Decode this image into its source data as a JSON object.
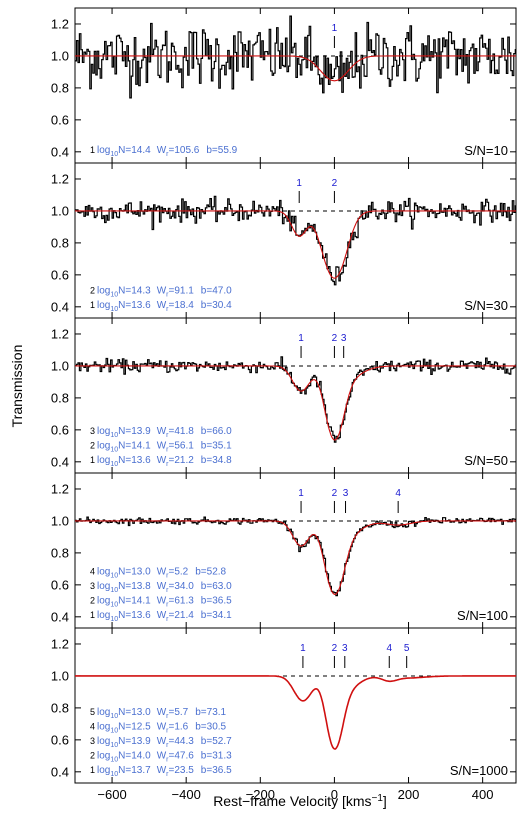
{
  "chart_data": {
    "type": "line",
    "xlabel": "Rest−frame Velocity [kms",
    "xlabel_sup": "−1",
    "xlabel_close": "]",
    "ylabel": "Transmission",
    "xlim": [
      -700,
      490
    ],
    "ylim": [
      0.33,
      1.3
    ],
    "x_ticks": [
      -600,
      -400,
      -200,
      0,
      200,
      400
    ],
    "x_tick_labels": [
      "−600",
      "−400",
      "−200",
      "0",
      "200",
      "400"
    ],
    "y_ticks": [
      0.4,
      0.6,
      0.8,
      1.0,
      1.2
    ],
    "y_tick_labels": [
      "0.4",
      "0.6",
      "0.8",
      "1.0",
      "1.2"
    ],
    "continuum_level": 1.0,
    "colors": {
      "data": "#000000",
      "model": "#d01010",
      "annotation": "#4a6fd0",
      "component_marker": "#1a1ad0"
    },
    "panels": [
      {
        "snr_label": "S/N=10",
        "snr": 10,
        "components": [
          {
            "id": "1",
            "v": 0,
            "log_prefix": "log",
            "log_sub": "10",
            "log_rest": "N=14.4",
            "w_prefix": "W",
            "w_sub": "r",
            "w_rest": "=105.6",
            "b_text": "b=55.9"
          }
        ]
      },
      {
        "snr_label": "S/N=30",
        "snr": 30,
        "components": [
          {
            "id": "2",
            "v": 0,
            "log_prefix": "log",
            "log_sub": "10",
            "log_rest": "N=14.3",
            "w_prefix": "W",
            "w_sub": "r",
            "w_rest": "=91.1",
            "b_text": "b=47.0"
          },
          {
            "id": "1",
            "v": -95,
            "log_prefix": "log",
            "log_sub": "10",
            "log_rest": "N=13.6",
            "w_prefix": "W",
            "w_sub": "r",
            "w_rest": "=18.4",
            "b_text": "b=30.4"
          }
        ]
      },
      {
        "snr_label": "S/N=50",
        "snr": 50,
        "components": [
          {
            "id": "3",
            "v": 25,
            "log_prefix": "log",
            "log_sub": "10",
            "log_rest": "N=13.9",
            "w_prefix": "W",
            "w_sub": "r",
            "w_rest": "=41.8",
            "b_text": "b=66.0"
          },
          {
            "id": "2",
            "v": 0,
            "log_prefix": "log",
            "log_sub": "10",
            "log_rest": "N=14.1",
            "w_prefix": "W",
            "w_sub": "r",
            "w_rest": "=56.1",
            "b_text": "b=35.1"
          },
          {
            "id": "1",
            "v": -90,
            "log_prefix": "log",
            "log_sub": "10",
            "log_rest": "N=13.6",
            "w_prefix": "W",
            "w_sub": "r",
            "w_rest": "=21.2",
            "b_text": "b=34.8"
          }
        ]
      },
      {
        "snr_label": "S/N=100",
        "snr": 100,
        "components": [
          {
            "id": "4",
            "v": 172,
            "log_prefix": "log",
            "log_sub": "10",
            "log_rest": "N=13.0",
            "w_prefix": "W",
            "w_sub": "r",
            "w_rest": "=5.2",
            "b_text": "b=52.8"
          },
          {
            "id": "3",
            "v": 30,
            "log_prefix": "log",
            "log_sub": "10",
            "log_rest": "N=13.8",
            "w_prefix": "W",
            "w_sub": "r",
            "w_rest": "=34.0",
            "b_text": "b=63.0"
          },
          {
            "id": "2",
            "v": 0,
            "log_prefix": "log",
            "log_sub": "10",
            "log_rest": "N=14.1",
            "w_prefix": "W",
            "w_sub": "r",
            "w_rest": "=61.3",
            "b_text": "b=36.5"
          },
          {
            "id": "1",
            "v": -90,
            "log_prefix": "log",
            "log_sub": "10",
            "log_rest": "N=13.6",
            "w_prefix": "W",
            "w_sub": "r",
            "w_rest": "=21.4",
            "b_text": "b=34.1"
          }
        ]
      },
      {
        "snr_label": "S/N=1000",
        "snr": 1000,
        "components": [
          {
            "id": "5",
            "v": 195,
            "log_prefix": "log",
            "log_sub": "10",
            "log_rest": "N=13.0",
            "w_prefix": "W",
            "w_sub": "r",
            "w_rest": "=5.7",
            "b_text": "b=73.1"
          },
          {
            "id": "4",
            "v": 148,
            "log_prefix": "log",
            "log_sub": "10",
            "log_rest": "N=12.5",
            "w_prefix": "W",
            "w_sub": "r",
            "w_rest": "=1.6",
            "b_text": "b=30.5"
          },
          {
            "id": "3",
            "v": 28,
            "log_prefix": "log",
            "log_sub": "10",
            "log_rest": "N=13.9",
            "w_prefix": "W",
            "w_sub": "r",
            "w_rest": "=44.3",
            "b_text": "b=52.7"
          },
          {
            "id": "2",
            "v": 0,
            "log_prefix": "log",
            "log_sub": "10",
            "log_rest": "N=14.0",
            "w_prefix": "W",
            "w_sub": "r",
            "w_rest": "=47.6",
            "b_text": "b=31.3"
          },
          {
            "id": "1",
            "v": -85,
            "log_prefix": "log",
            "log_sub": "10",
            "log_rest": "N=13.7",
            "w_prefix": "W",
            "w_sub": "r",
            "w_rest": "=23.5",
            "b_text": "b=36.5"
          }
        ]
      }
    ]
  }
}
